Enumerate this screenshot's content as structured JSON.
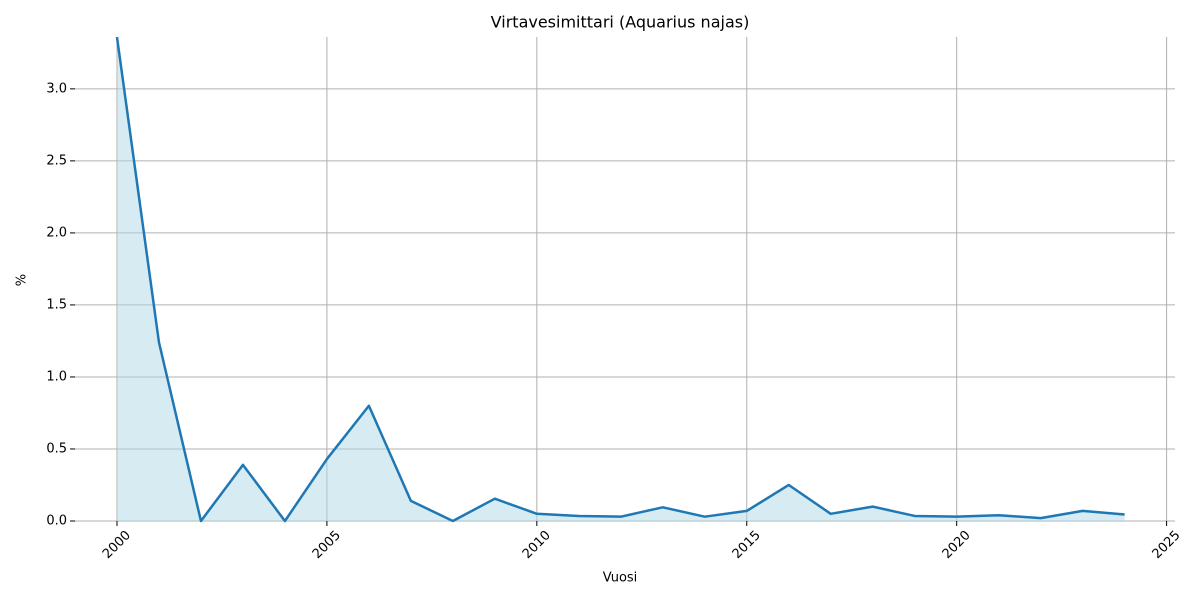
{
  "chart_data": {
    "type": "area-line",
    "title": "Virtavesimittari (Aquarius najas)",
    "x_label": "Vuosi",
    "y_label": "%",
    "x": [
      2000,
      2001,
      2002,
      2003,
      2004,
      2005,
      2006,
      2007,
      2008,
      2009,
      2010,
      2011,
      2012,
      2013,
      2014,
      2015,
      2016,
      2017,
      2018,
      2019,
      2020,
      2021,
      2022,
      2023,
      2024
    ],
    "series": [
      {
        "name": "Virtavesimittari",
        "color": "#1f77b4",
        "fill": "#add8e6",
        "values": [
          3.36,
          1.24,
          0,
          0.39,
          0,
          0.43,
          0.8,
          0.14,
          0,
          0.155,
          0.05,
          0.035,
          0.03,
          0.095,
          0.03,
          0.07,
          0.25,
          0.05,
          0.1,
          0.035,
          0.03,
          0.04,
          0.02,
          0.07,
          0.045
        ]
      }
    ],
    "xlim": [
      1999,
      2025.2
    ],
    "ylim": [
      0,
      3.36
    ],
    "xticks": [
      2000,
      2005,
      2010,
      2015,
      2020,
      2025
    ],
    "yticks": [
      {
        "value": 0,
        "label": "0.0"
      },
      0.5,
      {
        "value": 1,
        "label": "1.0"
      },
      1.5,
      {
        "value": 2,
        "label": "2.0"
      },
      2.5,
      {
        "value": 3,
        "label": "3.0"
      }
    ],
    "grid": true
  }
}
